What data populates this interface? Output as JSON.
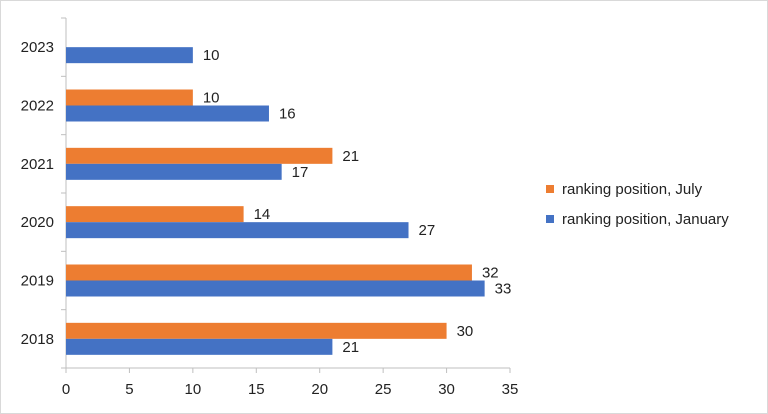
{
  "chart_data": {
    "type": "bar",
    "orientation": "horizontal",
    "categories": [
      "2023",
      "2022",
      "2021",
      "2020",
      "2019",
      "2018"
    ],
    "series": [
      {
        "name": "ranking position, July",
        "color": "#ED7D31",
        "values": [
          null,
          10,
          21,
          14,
          32,
          30
        ]
      },
      {
        "name": "ranking position, January",
        "color": "#4472C4",
        "values": [
          10,
          16,
          17,
          27,
          33,
          21
        ]
      }
    ],
    "xlim": [
      0,
      35
    ],
    "xticks": [
      "0",
      "5",
      "10",
      "15",
      "20",
      "25",
      "30",
      "35"
    ],
    "grid": false,
    "legend_position": "right",
    "data_labels": true
  }
}
